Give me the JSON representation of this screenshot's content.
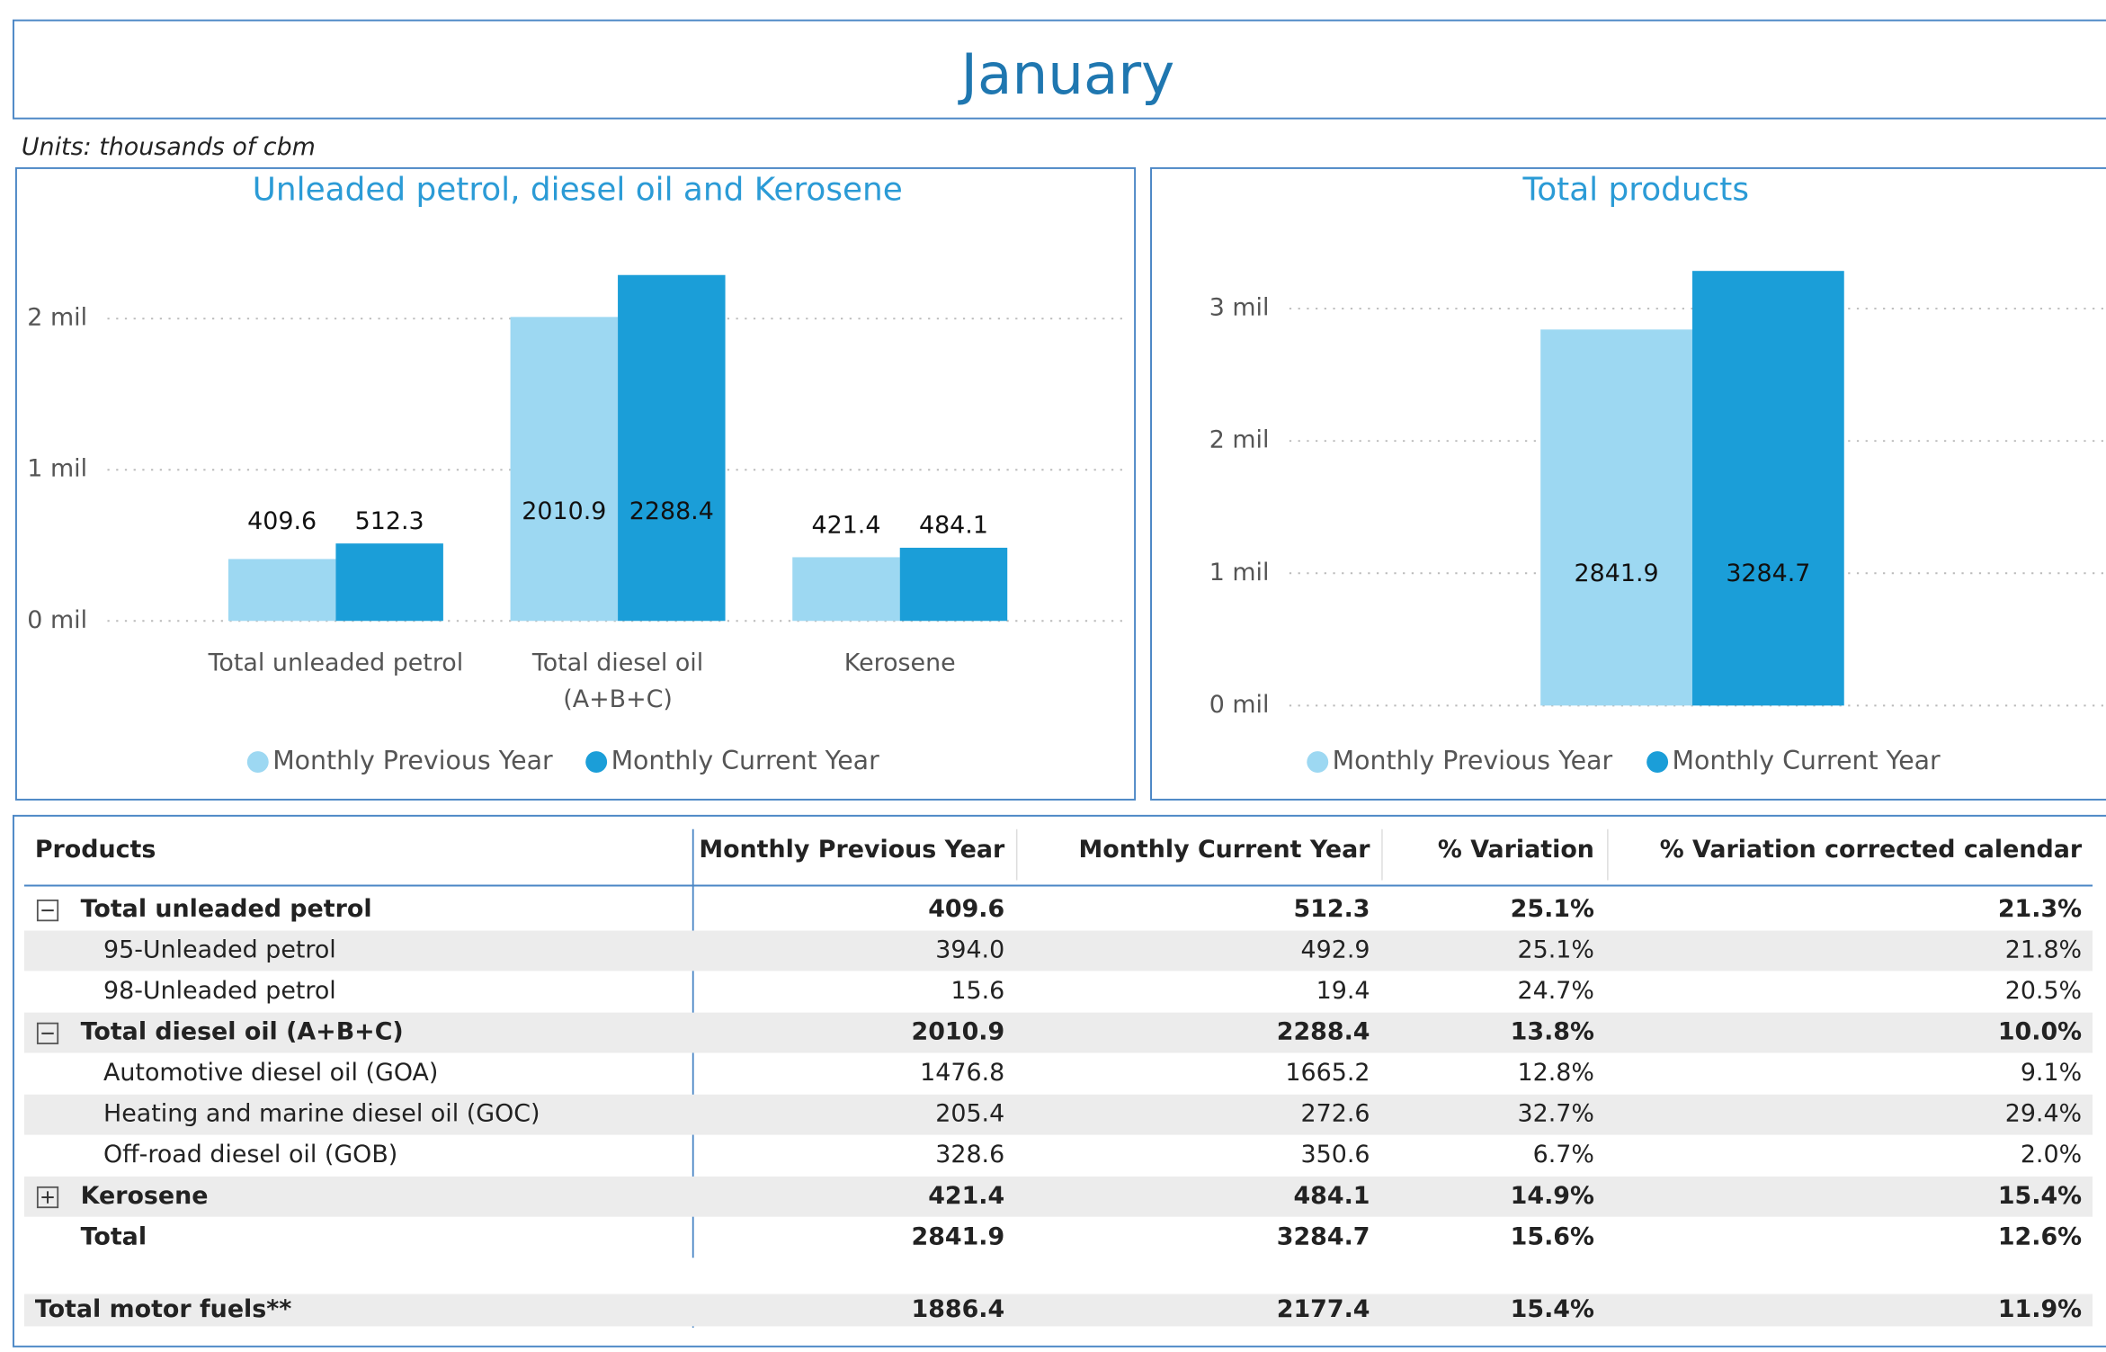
{
  "header": {
    "title": "January",
    "units": "Units: thousands of cbm"
  },
  "chart_data": [
    {
      "type": "bar",
      "title": "Unleaded petrol, diesel oil and Kerosene",
      "categories": [
        "Total unleaded petrol",
        "Total diesel oil (A+B+C)",
        "Kerosene"
      ],
      "series": [
        {
          "name": "Monthly Previous Year",
          "color": "#9dd8f2",
          "values": [
            409.6,
            2010.9,
            421.4
          ]
        },
        {
          "name": "Monthly Current Year",
          "color": "#1b9ed8",
          "values": [
            512.3,
            2288.4,
            484.1
          ]
        }
      ],
      "ylim": [
        0,
        2400
      ],
      "yticks": [
        {
          "value": 0,
          "label": "0 mil"
        },
        {
          "value": 1000,
          "label": "1 mil"
        },
        {
          "value": 2000,
          "label": "2 mil"
        }
      ],
      "grid": true,
      "legend": "bottom"
    },
    {
      "type": "bar",
      "title": "Total products",
      "categories": [
        null
      ],
      "series": [
        {
          "name": "Monthly Previous Year",
          "color": "#9dd8f2",
          "values": [
            2841.9
          ]
        },
        {
          "name": "Monthly Current Year",
          "color": "#1b9ed8",
          "values": [
            3284.7
          ]
        }
      ],
      "ylim": [
        0,
        3300
      ],
      "yticks": [
        {
          "value": 0,
          "label": "0 mil"
        },
        {
          "value": 1000,
          "label": "1 mil"
        },
        {
          "value": 2000,
          "label": "2 mil"
        },
        {
          "value": 3000,
          "label": "3 mil"
        }
      ],
      "grid": true,
      "legend": "bottom"
    }
  ],
  "table": {
    "columns": [
      "Products",
      "Monthly Previous Year",
      "Monthly Current Year",
      "% Variation",
      "% Variation corrected calendar"
    ],
    "rows": [
      {
        "cells": [
          "Total unleaded petrol",
          "409.6",
          "512.3",
          "25.1%",
          "21.3%"
        ],
        "expanded": true,
        "children": [
          {
            "cells": [
              "95-Unleaded petrol",
              "394.0",
              "492.9",
              "25.1%",
              "21.8%"
            ]
          },
          {
            "cells": [
              "98-Unleaded petrol",
              "15.6",
              "19.4",
              "24.7%",
              "20.5%"
            ]
          }
        ]
      },
      {
        "cells": [
          "Total diesel oil (A+B+C)",
          "2010.9",
          "2288.4",
          "13.8%",
          "10.0%"
        ],
        "expanded": true,
        "children": [
          {
            "cells": [
              "Automotive diesel oil (GOA)",
              "1476.8",
              "1665.2",
              "12.8%",
              "9.1%"
            ]
          },
          {
            "cells": [
              "Heating and marine diesel oil (GOC)",
              "205.4",
              "272.6",
              "32.7%",
              "29.4%"
            ]
          },
          {
            "cells": [
              "Off-road diesel oil (GOB)",
              "328.6",
              "350.6",
              "6.7%",
              "2.0%"
            ]
          }
        ]
      },
      {
        "cells": [
          "Kerosene",
          "421.4",
          "484.1",
          "14.9%",
          "15.4%"
        ],
        "expanded": false
      },
      {
        "cells": [
          "Total",
          "2841.9",
          "3284.7",
          "15.6%",
          "12.6%"
        ]
      }
    ],
    "footer": {
      "cells": [
        "Total motor fuels**",
        "1886.4",
        "2177.4",
        "15.4%",
        "11.9%"
      ]
    }
  }
}
